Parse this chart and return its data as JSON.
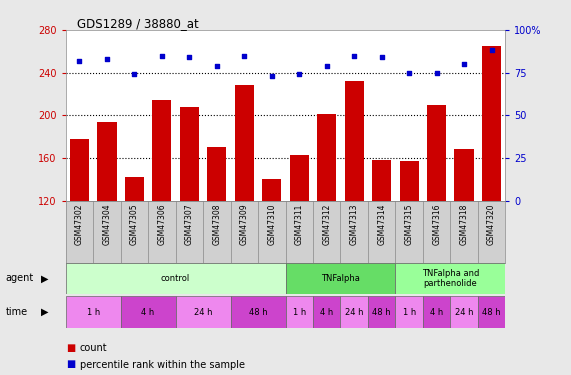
{
  "title": "GDS1289 / 38880_at",
  "samples": [
    "GSM47302",
    "GSM47304",
    "GSM47305",
    "GSM47306",
    "GSM47307",
    "GSM47308",
    "GSM47309",
    "GSM47310",
    "GSM47311",
    "GSM47312",
    "GSM47313",
    "GSM47314",
    "GSM47315",
    "GSM47316",
    "GSM47318",
    "GSM47320"
  ],
  "counts": [
    178,
    194,
    142,
    214,
    208,
    170,
    228,
    140,
    163,
    201,
    232,
    158,
    157,
    210,
    168,
    265
  ],
  "percentile": [
    82,
    83,
    74,
    85,
    84,
    79,
    85,
    73,
    74,
    79,
    85,
    84,
    75,
    75,
    80,
    88
  ],
  "bar_color": "#cc0000",
  "dot_color": "#0000cc",
  "ylim_left": [
    120,
    280
  ],
  "ylim_right": [
    0,
    100
  ],
  "yticks_left": [
    120,
    160,
    200,
    240,
    280
  ],
  "yticks_right": [
    0,
    25,
    50,
    75,
    100
  ],
  "ytick_labels_right": [
    "0",
    "25",
    "50",
    "75",
    "100%"
  ],
  "agent_groups": [
    {
      "label": "control",
      "start": 0,
      "end": 8,
      "color": "#ccffcc"
    },
    {
      "label": "TNFalpha",
      "start": 8,
      "end": 12,
      "color": "#66dd66"
    },
    {
      "label": "TNFalpha and\nparthenolide",
      "start": 12,
      "end": 16,
      "color": "#99ff99"
    }
  ],
  "time_groups": [
    {
      "label": "1 h",
      "start": 0,
      "end": 2,
      "color": "#ee88ee"
    },
    {
      "label": "4 h",
      "start": 2,
      "end": 4,
      "color": "#cc44cc"
    },
    {
      "label": "24 h",
      "start": 4,
      "end": 6,
      "color": "#ee88ee"
    },
    {
      "label": "48 h",
      "start": 6,
      "end": 8,
      "color": "#cc44cc"
    },
    {
      "label": "1 h",
      "start": 8,
      "end": 9,
      "color": "#ee88ee"
    },
    {
      "label": "4 h",
      "start": 9,
      "end": 10,
      "color": "#cc44cc"
    },
    {
      "label": "24 h",
      "start": 10,
      "end": 11,
      "color": "#ee88ee"
    },
    {
      "label": "48 h",
      "start": 11,
      "end": 12,
      "color": "#cc44cc"
    },
    {
      "label": "1 h",
      "start": 12,
      "end": 13,
      "color": "#ee88ee"
    },
    {
      "label": "4 h",
      "start": 13,
      "end": 14,
      "color": "#cc44cc"
    },
    {
      "label": "24 h",
      "start": 14,
      "end": 15,
      "color": "#ee88ee"
    },
    {
      "label": "48 h",
      "start": 15,
      "end": 16,
      "color": "#cc44cc"
    }
  ],
  "bg_color": "#e8e8e8",
  "plot_bg": "#ffffff",
  "left_tick_color": "#cc0000",
  "right_tick_color": "#0000cc",
  "sample_bg": "#d0d0d0",
  "grid_dotted_ticks": [
    160,
    200,
    240
  ]
}
